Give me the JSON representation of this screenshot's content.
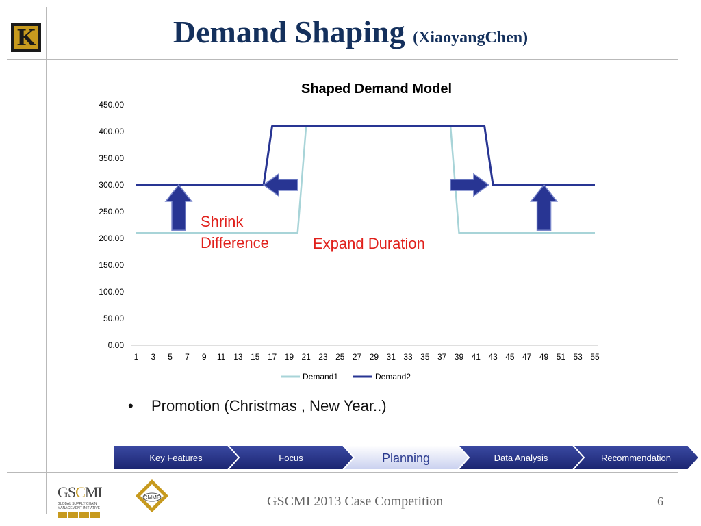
{
  "header": {
    "title": "Demand Shaping",
    "subtitle": "(XiaoyangChen)"
  },
  "chart_data": {
    "type": "line",
    "title": "Shaped Demand Model",
    "x": [
      1,
      2,
      3,
      4,
      5,
      6,
      7,
      8,
      9,
      10,
      11,
      12,
      13,
      14,
      15,
      16,
      17,
      18,
      19,
      20,
      21,
      22,
      23,
      24,
      25,
      26,
      27,
      28,
      29,
      30,
      31,
      32,
      33,
      34,
      35,
      36,
      37,
      38,
      39,
      40,
      41,
      42,
      43,
      44,
      45,
      46,
      47,
      48,
      49,
      50,
      51,
      52,
      53,
      54,
      55
    ],
    "x_ticks": [
      "1",
      "3",
      "5",
      "7",
      "9",
      "11",
      "13",
      "15",
      "17",
      "19",
      "21",
      "23",
      "25",
      "27",
      "29",
      "31",
      "33",
      "35",
      "37",
      "39",
      "41",
      "43",
      "45",
      "47",
      "49",
      "51",
      "53",
      "55"
    ],
    "y_ticks": [
      "0.00",
      "50.00",
      "100.00",
      "150.00",
      "200.00",
      "250.00",
      "300.00",
      "350.00",
      "400.00",
      "450.00"
    ],
    "ylim": [
      0,
      450
    ],
    "grid": false,
    "legend": "bottom",
    "series": [
      {
        "name": "Demand1",
        "color": "#a8d4d8",
        "values": [
          210,
          210,
          210,
          210,
          210,
          210,
          210,
          210,
          210,
          210,
          210,
          210,
          210,
          210,
          210,
          210,
          210,
          210,
          210,
          210,
          410,
          410,
          410,
          410,
          410,
          410,
          410,
          410,
          410,
          410,
          410,
          410,
          410,
          410,
          410,
          410,
          410,
          410,
          210,
          210,
          210,
          210,
          210,
          210,
          210,
          210,
          210,
          210,
          210,
          210,
          210,
          210,
          210,
          210,
          210
        ]
      },
      {
        "name": "Demand2",
        "color": "#283593",
        "values": [
          300,
          300,
          300,
          300,
          300,
          300,
          300,
          300,
          300,
          300,
          300,
          300,
          300,
          300,
          300,
          300,
          410,
          410,
          410,
          410,
          410,
          410,
          410,
          410,
          410,
          410,
          410,
          410,
          410,
          410,
          410,
          410,
          410,
          410,
          410,
          410,
          410,
          410,
          410,
          410,
          410,
          410,
          300,
          300,
          300,
          300,
          300,
          300,
          300,
          300,
          300,
          300,
          300,
          300,
          300
        ]
      }
    ],
    "annotations": {
      "shrink": [
        "Shrink",
        "Difference"
      ],
      "expand": "Expand Duration"
    }
  },
  "bullet": {
    "marker": "•",
    "text": "Promotion (Christmas , New Year..)"
  },
  "nav": {
    "steps": [
      "Key Features",
      "Focus",
      "Planning",
      "Data Analysis",
      "Recommendation"
    ],
    "active_index": 2
  },
  "footer": {
    "text": "GSCMI 2013 Case Competition",
    "page": "6"
  },
  "logos": {
    "gscmi_name": "GSCMI",
    "gscmi_tag": "GLOBAL SUPPLY CHAIN MANAGEMENT INITIATIVE",
    "cmme": "CMME",
    "k_letter": "K"
  },
  "colors": {
    "title": "#14305c",
    "nav_dark": "#1d2a7d",
    "arrow": "#283593",
    "annotation": "#e0201b",
    "accent_gold": "#c79a1e"
  }
}
